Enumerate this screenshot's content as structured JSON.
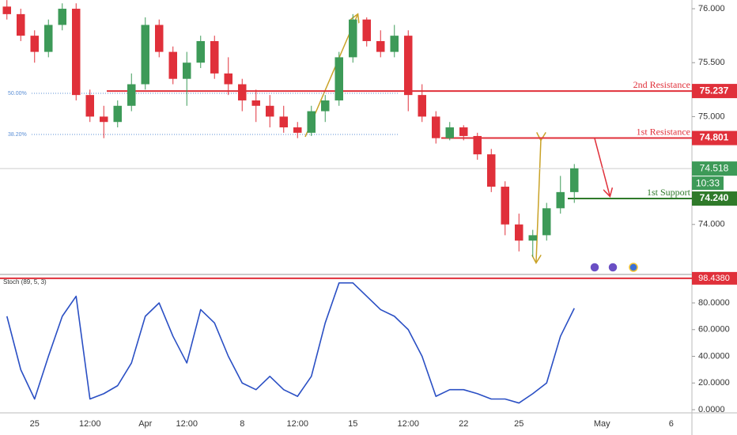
{
  "chart_data": [
    {
      "type": "candlestick",
      "categories": [
        null,
        null,
        "25",
        null,
        null,
        null,
        "12:00",
        null,
        null,
        null,
        "Apr",
        null,
        null,
        "12:00",
        null,
        null,
        null,
        "8",
        null,
        null,
        null,
        "12:00",
        null,
        null,
        null,
        "15",
        null,
        null,
        null,
        "12:00",
        null,
        null,
        null,
        "22",
        null,
        null,
        null,
        "25",
        null,
        null,
        null,
        null,
        null,
        "May",
        null,
        null,
        null,
        null,
        "6",
        null
      ],
      "open": [
        76.02,
        75.95,
        75.75,
        75.6,
        75.85,
        76.0,
        75.2,
        75.0,
        74.95,
        75.1,
        75.3,
        75.85,
        75.6,
        75.35,
        75.5,
        75.7,
        75.4,
        75.3,
        75.15,
        75.1,
        75.0,
        74.9,
        74.85,
        75.05,
        75.15,
        75.55,
        75.9,
        75.7,
        75.6,
        75.75,
        75.2,
        75.0,
        74.8,
        74.9,
        74.82,
        74.65,
        74.35,
        74.0,
        73.85,
        73.9,
        74.15,
        74.3,
        null,
        null,
        null,
        null,
        null,
        null,
        null,
        null
      ],
      "high": [
        76.08,
        76.0,
        75.8,
        75.9,
        76.05,
        76.05,
        75.25,
        75.1,
        75.15,
        75.4,
        75.92,
        75.9,
        75.65,
        75.6,
        75.75,
        75.75,
        75.55,
        75.35,
        75.25,
        75.2,
        75.1,
        74.95,
        75.1,
        75.2,
        75.6,
        75.95,
        75.92,
        75.8,
        75.85,
        75.8,
        75.3,
        75.05,
        74.95,
        74.92,
        74.85,
        74.7,
        74.4,
        74.1,
        73.95,
        74.2,
        74.45,
        74.56,
        null,
        null,
        null,
        null,
        null,
        null,
        null,
        null
      ],
      "low": [
        75.9,
        75.7,
        75.5,
        75.55,
        75.8,
        75.15,
        74.95,
        74.8,
        74.9,
        75.05,
        75.25,
        75.55,
        75.3,
        75.1,
        75.45,
        75.35,
        75.2,
        75.05,
        74.95,
        74.9,
        74.85,
        74.8,
        74.82,
        74.95,
        75.1,
        75.5,
        75.65,
        75.55,
        75.55,
        75.05,
        74.95,
        74.75,
        74.78,
        74.78,
        74.6,
        74.3,
        73.9,
        73.75,
        73.7,
        73.85,
        74.1,
        74.2,
        null,
        null,
        null,
        null,
        null,
        null,
        null,
        null
      ],
      "close": [
        75.95,
        75.75,
        75.6,
        75.85,
        76.0,
        75.2,
        75.0,
        74.95,
        75.1,
        75.3,
        75.85,
        75.6,
        75.35,
        75.5,
        75.7,
        75.4,
        75.3,
        75.15,
        75.1,
        75.0,
        74.9,
        74.85,
        75.05,
        75.15,
        75.55,
        75.9,
        75.7,
        75.6,
        75.75,
        75.2,
        75.0,
        74.8,
        74.9,
        74.82,
        74.65,
        74.35,
        74.0,
        73.85,
        73.9,
        74.15,
        74.3,
        74.52,
        null,
        null,
        null,
        null,
        null,
        null,
        null,
        null
      ],
      "up_color": "#3d9a58",
      "down_color": "#e0303a",
      "ylim": [
        73.551,
        76.081
      ],
      "yticks": [
        {
          "value": 74,
          "label": "74.000"
        },
        {
          "value": 75,
          "label": "75.000"
        },
        {
          "value": 75.5,
          "label": "75.500"
        },
        {
          "value": 76,
          "label": "76.000"
        }
      ],
      "levels": [
        {
          "name": "2nd Resistance",
          "value": 75.237,
          "color": "#e0303a"
        },
        {
          "name": "1st Resistance",
          "value": 74.801,
          "color": "#e0303a"
        },
        {
          "name": "1st Support",
          "value": 74.24,
          "value_label": "74.240",
          "color": "#2f7a2a"
        }
      ],
      "fib_levels": [
        {
          "label": "50.00%",
          "value": 75.216
        },
        {
          "label": "38.20%",
          "value": 74.834
        }
      ],
      "last_price": 74.518,
      "countdown": "10:33",
      "last_color": "#3d9a58"
    },
    {
      "type": "line",
      "title": "Stoch (89, 5, 3)",
      "values": [
        70,
        30,
        8,
        40,
        70,
        85,
        8,
        12,
        18,
        35,
        70,
        80,
        55,
        35,
        75,
        65,
        40,
        20,
        15,
        25,
        15,
        10,
        25,
        65,
        95,
        95,
        85,
        75,
        70,
        60,
        40,
        10,
        15,
        15,
        12,
        8,
        8,
        5,
        12,
        20,
        55,
        76,
        null,
        null,
        null,
        null,
        null,
        null,
        null,
        null
      ],
      "color": "#2a4fc4",
      "ylim": [
        -2.37,
        99.56
      ],
      "yticks": [
        {
          "value": 0,
          "label": "0.0000"
        },
        {
          "value": 20,
          "label": "20.0000"
        },
        {
          "value": 40,
          "label": "40.0000"
        },
        {
          "value": 60,
          "label": "60.0000"
        },
        {
          "value": 80,
          "label": "80.0000"
        }
      ],
      "level": {
        "value": 98.438,
        "label": "98.4380"
      },
      "level_color": "#e0303a"
    }
  ]
}
